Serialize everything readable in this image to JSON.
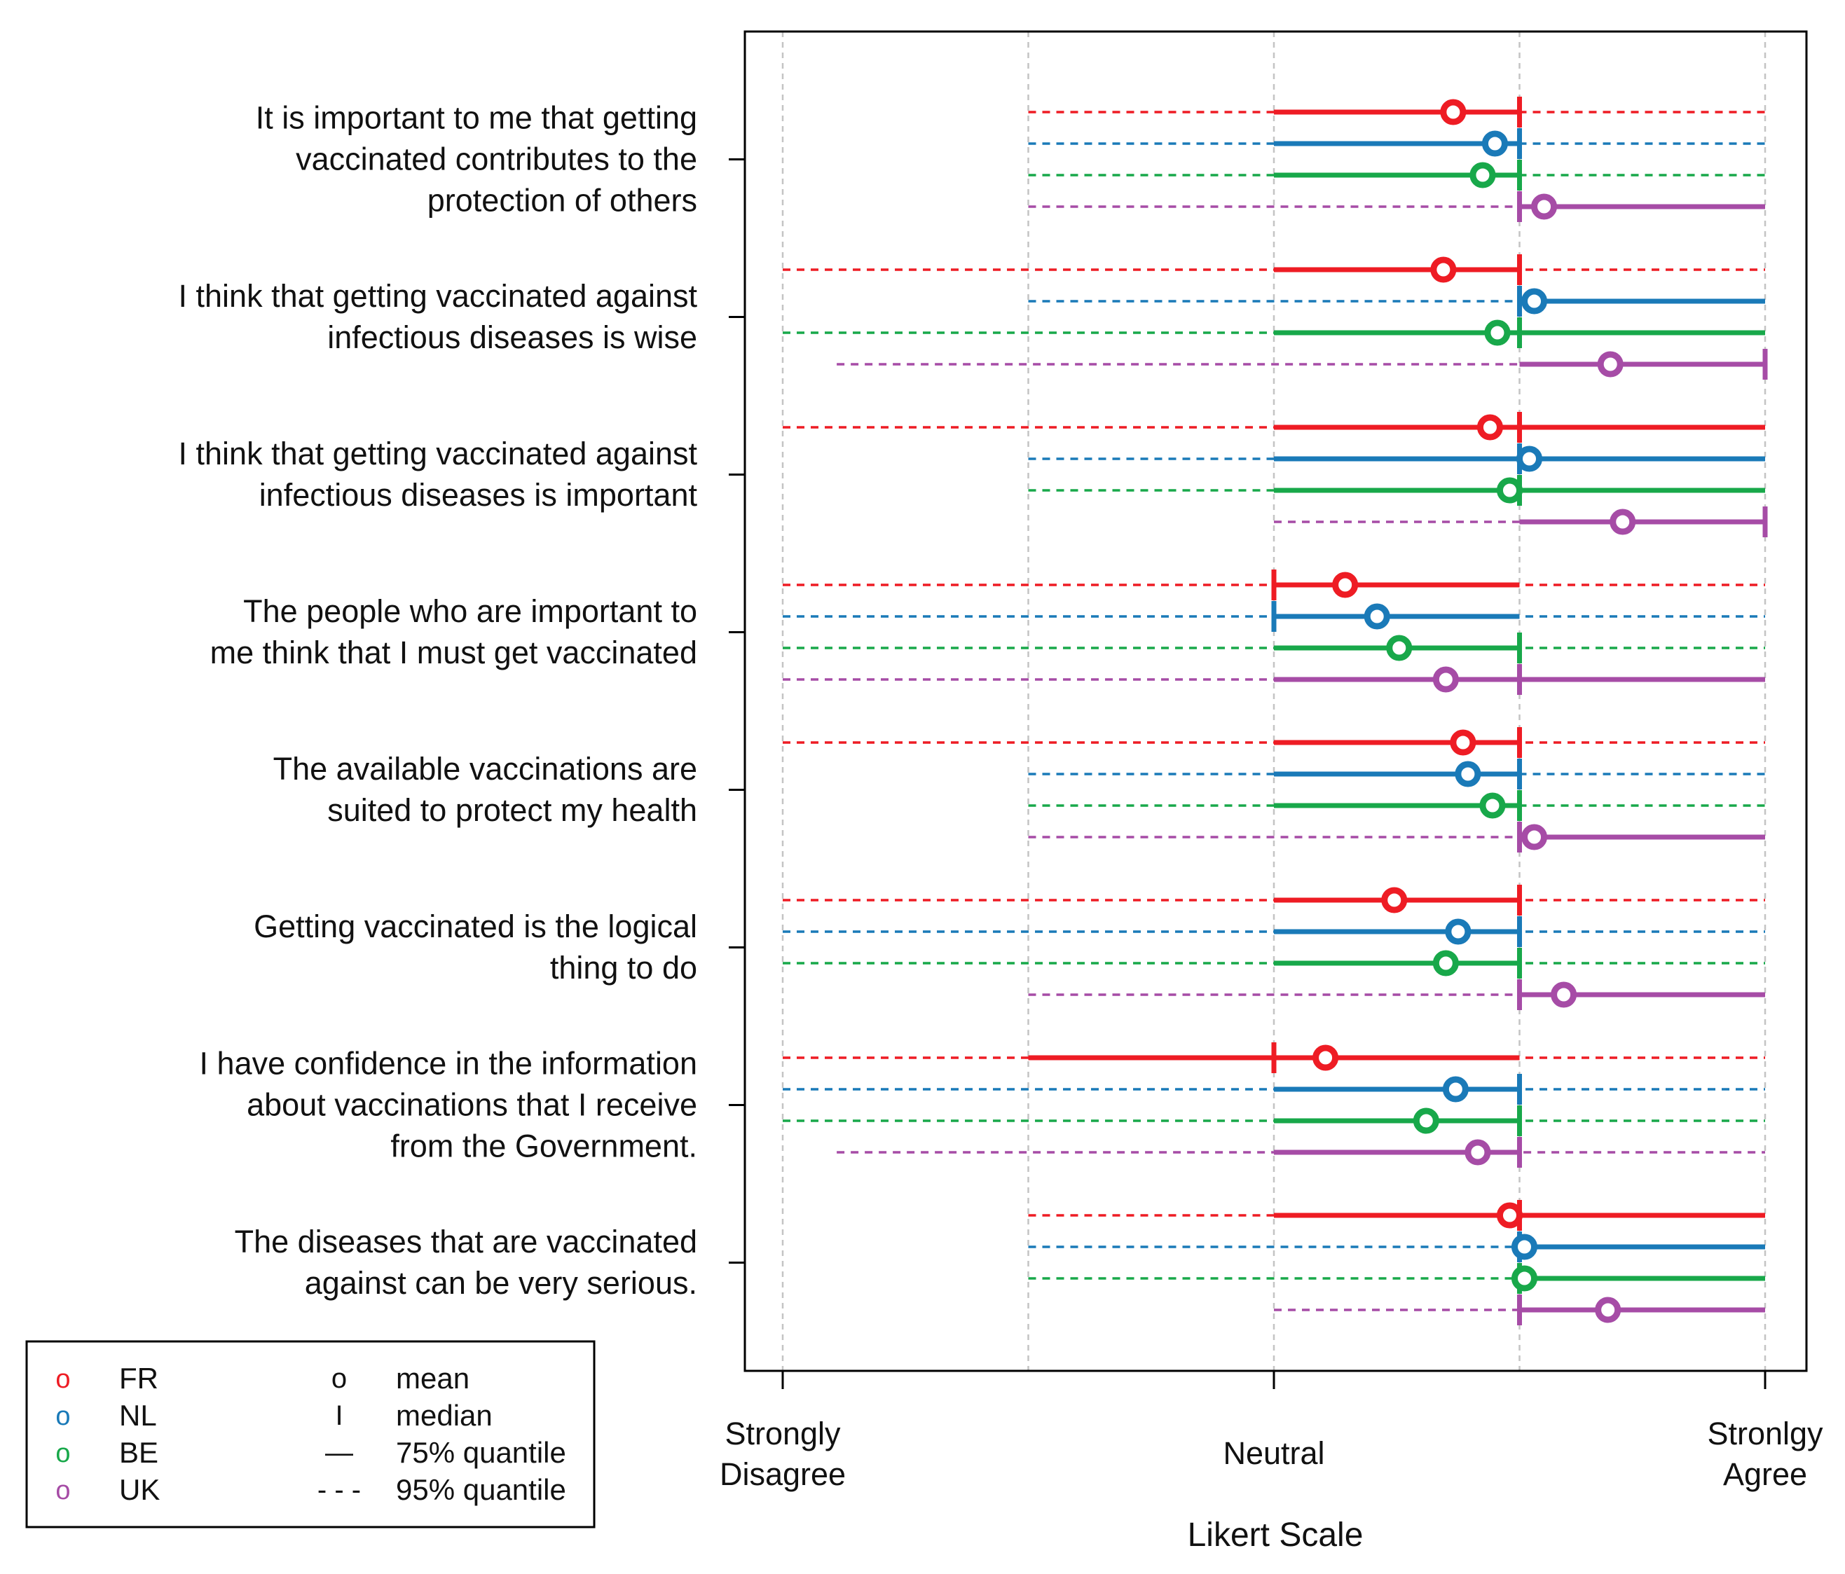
{
  "chart_data": {
    "type": "interval-dot",
    "xlabel": "Likert Scale",
    "xlim": [
      1,
      5
    ],
    "ticks": [
      {
        "value": 1,
        "label": [
          "Strongly",
          "Disagree"
        ]
      },
      {
        "value": 3,
        "label": [
          "Neutral"
        ]
      },
      {
        "value": 5,
        "label": [
          "Stronlgy",
          "Agree"
        ]
      }
    ],
    "gridlines": [
      1,
      2,
      3,
      4,
      5
    ],
    "countries": [
      {
        "code": "FR",
        "color": "#ee1c24"
      },
      {
        "code": "NL",
        "color": "#1a7ab8"
      },
      {
        "code": "BE",
        "color": "#18a84a"
      },
      {
        "code": "UK",
        "color": "#a64ca6"
      }
    ],
    "items": [
      {
        "label": [
          "It is important to me that getting",
          "vaccinated contributes to the",
          "protection of others"
        ],
        "series": [
          {
            "country": "FR",
            "q95": [
              2,
              5
            ],
            "q75": [
              3,
              4
            ],
            "median": 4,
            "mean": 3.73
          },
          {
            "country": "NL",
            "q95": [
              2,
              5
            ],
            "q75": [
              3,
              4
            ],
            "median": 4,
            "mean": 3.9
          },
          {
            "country": "BE",
            "q95": [
              2,
              5
            ],
            "q75": [
              3,
              4
            ],
            "median": 4,
            "mean": 3.85
          },
          {
            "country": "UK",
            "q95": [
              2,
              5
            ],
            "q75": [
              4,
              5
            ],
            "median": 4,
            "mean": 4.1
          }
        ]
      },
      {
        "label": [
          "I think that getting vaccinated against",
          "infectious diseases is wise"
        ],
        "series": [
          {
            "country": "FR",
            "q95": [
              1,
              5
            ],
            "q75": [
              3,
              4
            ],
            "median": 4,
            "mean": 3.69
          },
          {
            "country": "NL",
            "q95": [
              2,
              5
            ],
            "q75": [
              4,
              5
            ],
            "median": 4,
            "mean": 4.06
          },
          {
            "country": "BE",
            "q95": [
              1,
              5
            ],
            "q75": [
              3,
              5
            ],
            "median": 4,
            "mean": 3.91
          },
          {
            "country": "UK",
            "q95": [
              1.22,
              5
            ],
            "q75": [
              4,
              5
            ],
            "median": 5,
            "mean": 4.37
          }
        ]
      },
      {
        "label": [
          "I think that getting vaccinated against",
          "infectious diseases is important"
        ],
        "series": [
          {
            "country": "FR",
            "q95": [
              1,
              5
            ],
            "q75": [
              3,
              5
            ],
            "median": 4,
            "mean": 3.88
          },
          {
            "country": "NL",
            "q95": [
              2,
              5
            ],
            "q75": [
              3,
              5
            ],
            "median": 4,
            "mean": 4.04
          },
          {
            "country": "BE",
            "q95": [
              2,
              5
            ],
            "q75": [
              3,
              5
            ],
            "median": 4,
            "mean": 3.96
          },
          {
            "country": "UK",
            "q95": [
              3,
              5
            ],
            "q75": [
              4,
              5
            ],
            "median": 5,
            "mean": 4.42
          }
        ]
      },
      {
        "label": [
          "The people who are important to",
          "me think that I must get vaccinated"
        ],
        "series": [
          {
            "country": "FR",
            "q95": [
              1,
              5
            ],
            "q75": [
              3,
              4
            ],
            "median": 3,
            "mean": 3.29
          },
          {
            "country": "NL",
            "q95": [
              1,
              5
            ],
            "q75": [
              3,
              4
            ],
            "median": 3,
            "mean": 3.42
          },
          {
            "country": "BE",
            "q95": [
              1,
              5
            ],
            "q75": [
              3,
              4
            ],
            "median": 4,
            "mean": 3.51
          },
          {
            "country": "UK",
            "q95": [
              1,
              5
            ],
            "q75": [
              3,
              5
            ],
            "median": 4,
            "mean": 3.7
          }
        ]
      },
      {
        "label": [
          "The available vaccinations are",
          "suited to protect my health"
        ],
        "series": [
          {
            "country": "FR",
            "q95": [
              1,
              5
            ],
            "q75": [
              3,
              4
            ],
            "median": 4,
            "mean": 3.77
          },
          {
            "country": "NL",
            "q95": [
              2,
              5
            ],
            "q75": [
              3,
              4
            ],
            "median": 4,
            "mean": 3.79
          },
          {
            "country": "BE",
            "q95": [
              2,
              5
            ],
            "q75": [
              3,
              4
            ],
            "median": 4,
            "mean": 3.89
          },
          {
            "country": "UK",
            "q95": [
              2,
              5
            ],
            "q75": [
              4,
              5
            ],
            "median": 4,
            "mean": 4.06
          }
        ]
      },
      {
        "label": [
          "Getting vaccinated is the logical",
          "thing to do"
        ],
        "series": [
          {
            "country": "FR",
            "q95": [
              1,
              5
            ],
            "q75": [
              3,
              4
            ],
            "median": 4,
            "mean": 3.49
          },
          {
            "country": "NL",
            "q95": [
              1,
              5
            ],
            "q75": [
              3,
              4
            ],
            "median": 4,
            "mean": 3.75
          },
          {
            "country": "BE",
            "q95": [
              1,
              5
            ],
            "q75": [
              3,
              4
            ],
            "median": 4,
            "mean": 3.7
          },
          {
            "country": "UK",
            "q95": [
              2,
              5
            ],
            "q75": [
              4,
              5
            ],
            "median": 4,
            "mean": 4.18
          }
        ]
      },
      {
        "label": [
          "I have confidence in the information",
          "about vaccinations that I receive",
          "from the Government."
        ],
        "series": [
          {
            "country": "FR",
            "q95": [
              1,
              5
            ],
            "q75": [
              2,
              4
            ],
            "median": 3,
            "mean": 3.21
          },
          {
            "country": "NL",
            "q95": [
              1,
              5
            ],
            "q75": [
              3,
              4
            ],
            "median": 4,
            "mean": 3.74
          },
          {
            "country": "BE",
            "q95": [
              1,
              5
            ],
            "q75": [
              3,
              4
            ],
            "median": 4,
            "mean": 3.62
          },
          {
            "country": "UK",
            "q95": [
              1.22,
              5
            ],
            "q75": [
              3,
              4
            ],
            "median": 4,
            "mean": 3.83
          }
        ]
      },
      {
        "label": [
          "The diseases that are vaccinated",
          "against can be very serious."
        ],
        "series": [
          {
            "country": "FR",
            "q95": [
              2,
              5
            ],
            "q75": [
              3,
              5
            ],
            "median": 4,
            "mean": 3.96
          },
          {
            "country": "NL",
            "q95": [
              2,
              5
            ],
            "q75": [
              4,
              5
            ],
            "median": 4,
            "mean": 4.02
          },
          {
            "country": "BE",
            "q95": [
              2,
              5
            ],
            "q75": [
              4,
              5
            ],
            "median": 4,
            "mean": 4.02
          },
          {
            "country": "UK",
            "q95": [
              3,
              5
            ],
            "q75": [
              4,
              5
            ],
            "median": 4,
            "mean": 4.36
          }
        ]
      }
    ],
    "legend": {
      "position": "bottom-left",
      "countries": [
        "FR",
        "NL",
        "BE",
        "UK"
      ],
      "country_symbol": "o",
      "keys": [
        {
          "symbol": "o",
          "label": "mean"
        },
        {
          "symbol": "I",
          "label": "median"
        },
        {
          "symbol": "—",
          "label": "75% quantile"
        },
        {
          "symbol": "- - -",
          "label": "95% quantile"
        }
      ]
    }
  }
}
